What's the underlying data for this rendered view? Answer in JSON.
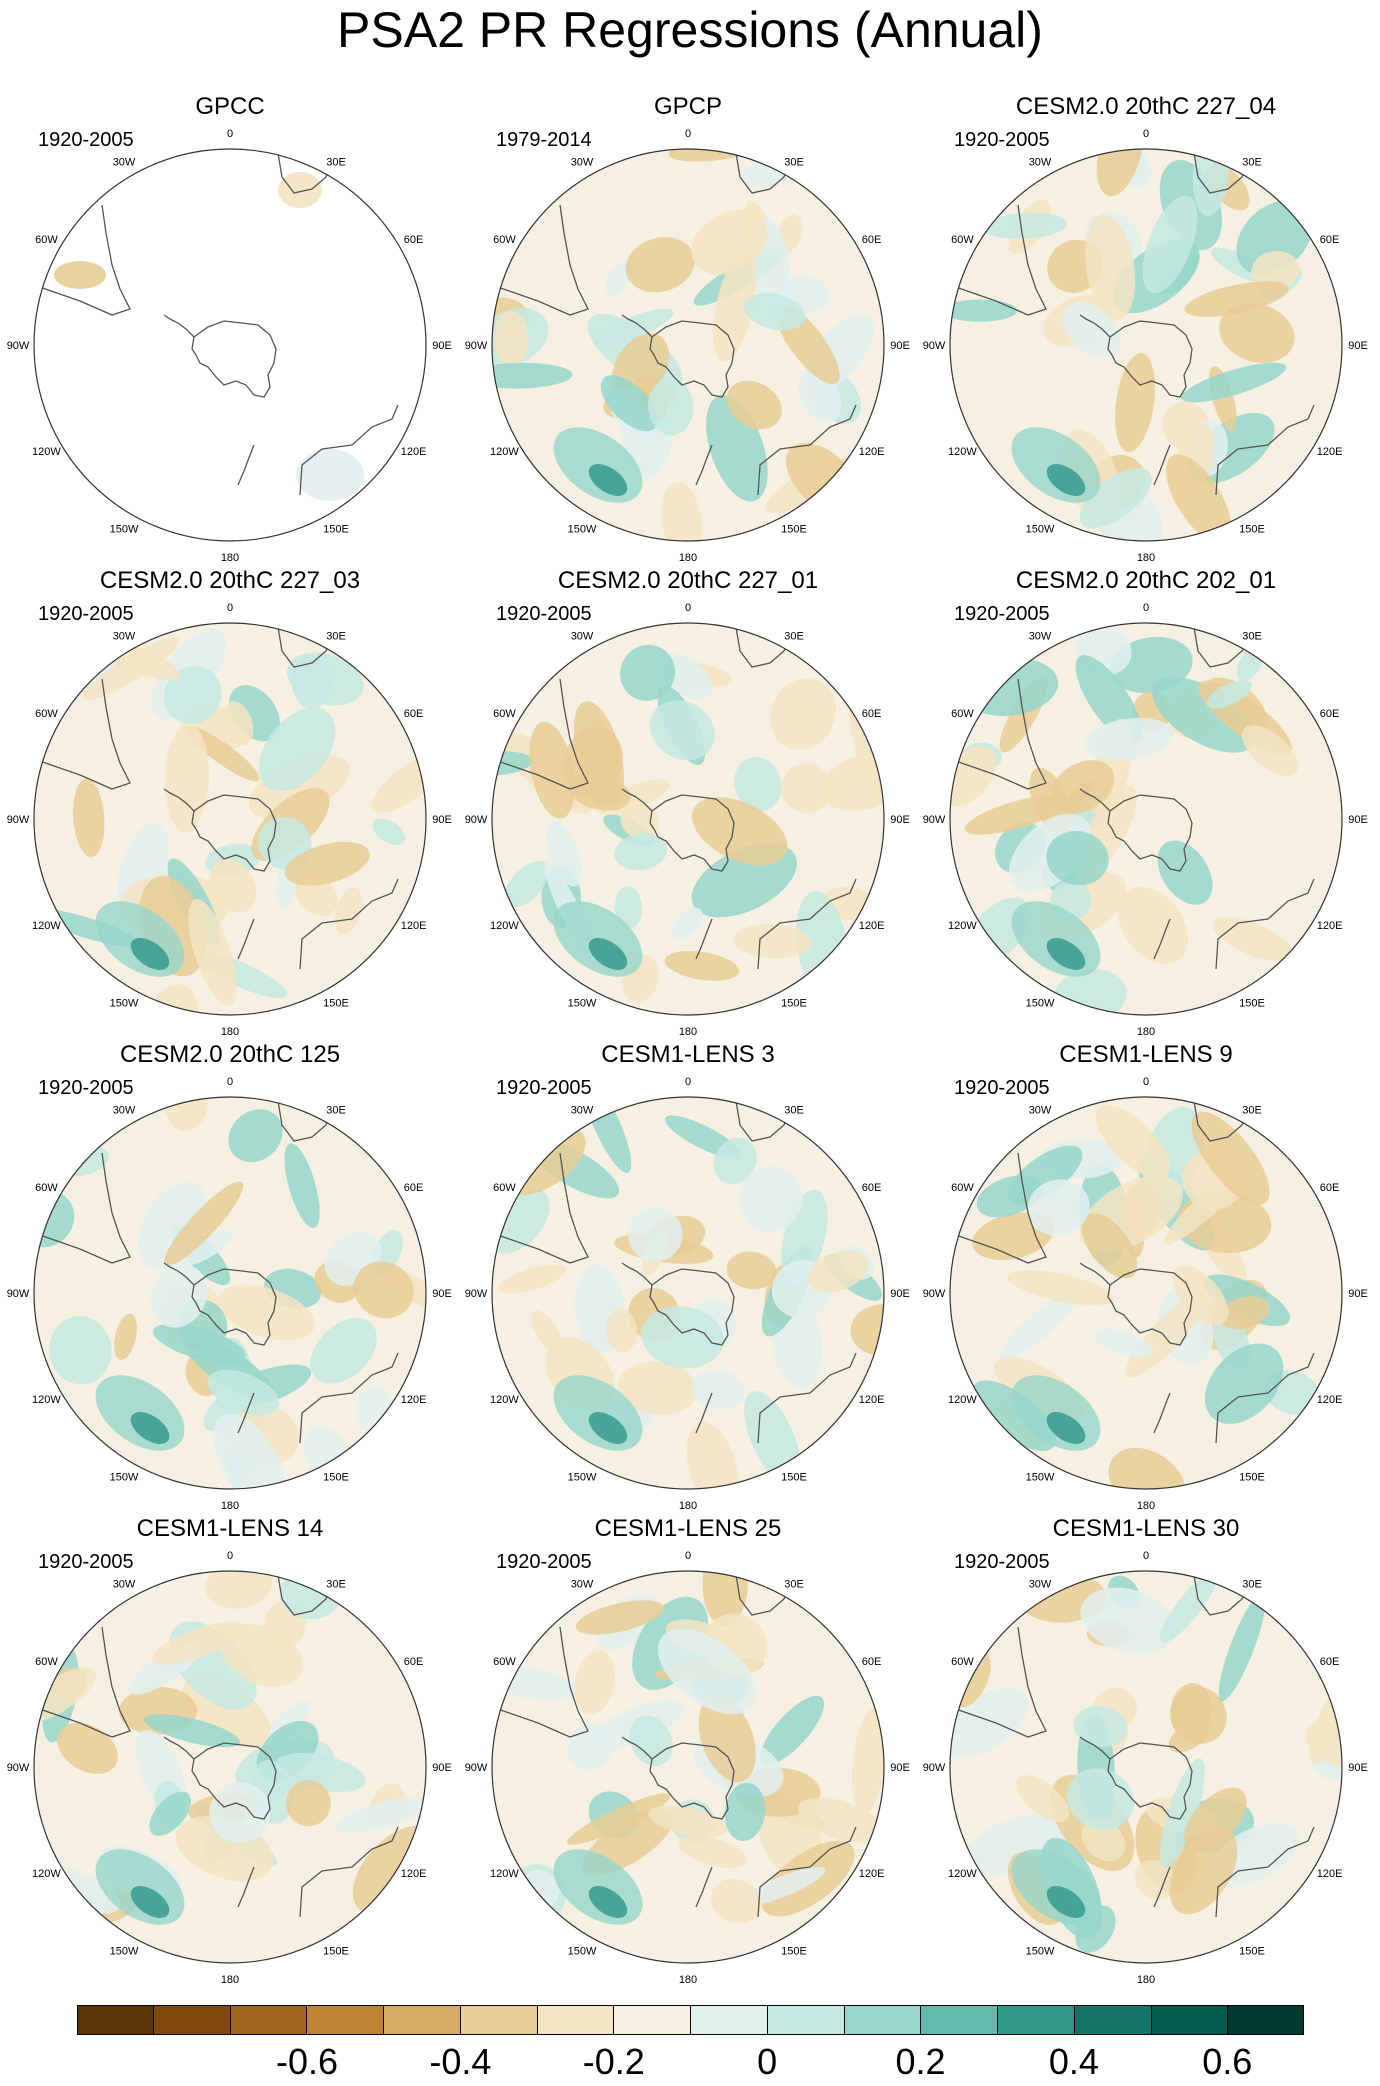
{
  "title": "PSA2 PR Regressions (Annual)",
  "panels": [
    {
      "name": "GPCC",
      "period": "1920-2005",
      "mask": true
    },
    {
      "name": "GPCP",
      "period": "1979-2014"
    },
    {
      "name": "CESM2.0 20thC 227_04",
      "period": "1920-2005"
    },
    {
      "name": "CESM2.0 20thC 227_03",
      "period": "1920-2005"
    },
    {
      "name": "CESM2.0 20thC 227_01",
      "period": "1920-2005"
    },
    {
      "name": "CESM2.0 20thC 202_01",
      "period": "1920-2005"
    },
    {
      "name": "CESM2.0 20thC 125",
      "period": "1920-2005"
    },
    {
      "name": "CESM1-LENS 3",
      "period": "1920-2005"
    },
    {
      "name": "CESM1-LENS 9",
      "period": "1920-2005"
    },
    {
      "name": "CESM1-LENS 14",
      "period": "1920-2005"
    },
    {
      "name": "CESM1-LENS 25",
      "period": "1920-2005"
    },
    {
      "name": "CESM1-LENS 30",
      "period": "1920-2005"
    }
  ],
  "lon_labels": [
    "0",
    "30E",
    "60E",
    "90E",
    "120E",
    "150E",
    "180",
    "150W",
    "120W",
    "90W",
    "60W",
    "30W"
  ],
  "colorbar": {
    "colors": [
      "#5b3408",
      "#80480d",
      "#a1651d",
      "#be8434",
      "#d5aa63",
      "#e8cd95",
      "#f3e4c2",
      "#f5f0e2",
      "#e2f0ee",
      "#c5e9e2",
      "#97d6ca",
      "#63b9ab",
      "#2f968a",
      "#137569",
      "#035a4d",
      "#00392f"
    ],
    "labels": [
      "-0.6",
      "-0.4",
      "-0.2",
      "0",
      "0.2",
      "0.4",
      "0.6"
    ]
  }
}
